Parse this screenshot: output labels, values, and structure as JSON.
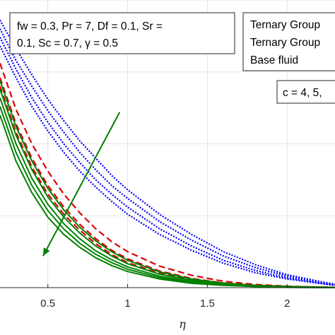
{
  "chart_data": {
    "type": "line",
    "xlabel": "η",
    "ylabel": "",
    "title": "",
    "xlim": [
      0.2,
      2.3
    ],
    "ylim": [
      0,
      1
    ],
    "grid": true,
    "xticks": [
      0.5,
      1,
      1.5,
      2
    ],
    "xtick_labels": [
      "0.5",
      "1",
      "1.5",
      "2"
    ],
    "legend": {
      "placement": "top-right",
      "entries": [
        {
          "label": "Ternary Group",
          "color": "#0000ff",
          "style": "dotted"
        },
        {
          "label": "Ternary Group",
          "color": "#dd0000",
          "style": "dashed"
        },
        {
          "label": "Base fluid",
          "color": "#008000",
          "style": "solid"
        }
      ]
    },
    "annotations": {
      "params_line1": "fw = 0.3, Pr = 7, Df = 0.1, Sr =",
      "params_line2": "0.1, Sc = 0.7, γ = 0.5",
      "c_label": "c = 4, 5,"
    },
    "arrow": {
      "from": [
        0.95,
        0.61
      ],
      "to": [
        0.47,
        0.11
      ],
      "color": "#008000"
    },
    "series": [
      {
        "color": "#0000ff",
        "style": "dotted",
        "x": [
          0.2,
          0.3,
          0.4,
          0.5,
          0.6,
          0.7,
          0.8,
          0.9,
          1.0,
          1.2,
          1.4,
          1.6,
          1.8,
          2.0,
          2.2,
          2.3
        ],
        "y": [
          0.93,
          0.83,
          0.74,
          0.655,
          0.58,
          0.51,
          0.45,
          0.39,
          0.34,
          0.255,
          0.185,
          0.125,
          0.08,
          0.045,
          0.022,
          0.012
        ]
      },
      {
        "color": "#0000ff",
        "style": "dotted",
        "x": [
          0.2,
          0.3,
          0.4,
          0.5,
          0.6,
          0.7,
          0.8,
          0.9,
          1.0,
          1.2,
          1.4,
          1.6,
          1.8,
          2.0,
          2.2,
          2.3
        ],
        "y": [
          0.9,
          0.79,
          0.7,
          0.615,
          0.54,
          0.47,
          0.41,
          0.355,
          0.31,
          0.23,
          0.165,
          0.11,
          0.07,
          0.04,
          0.02,
          0.01
        ]
      },
      {
        "color": "#0000ff",
        "style": "dotted",
        "x": [
          0.2,
          0.3,
          0.4,
          0.5,
          0.6,
          0.7,
          0.8,
          0.9,
          1.0,
          1.2,
          1.4,
          1.6,
          1.8,
          2.0,
          2.2,
          2.3
        ],
        "y": [
          0.87,
          0.76,
          0.66,
          0.575,
          0.5,
          0.435,
          0.375,
          0.325,
          0.28,
          0.205,
          0.145,
          0.095,
          0.06,
          0.034,
          0.017,
          0.009
        ]
      },
      {
        "color": "#0000ff",
        "style": "dotted",
        "x": [
          0.2,
          0.3,
          0.4,
          0.5,
          0.6,
          0.7,
          0.8,
          0.9,
          1.0,
          1.2,
          1.4,
          1.6,
          1.8,
          2.0,
          2.2,
          2.3
        ],
        "y": [
          0.84,
          0.73,
          0.63,
          0.545,
          0.47,
          0.405,
          0.35,
          0.3,
          0.255,
          0.185,
          0.13,
          0.085,
          0.052,
          0.03,
          0.015,
          0.008
        ]
      },
      {
        "color": "#dd0000",
        "style": "dashed",
        "x": [
          0.2,
          0.3,
          0.4,
          0.5,
          0.6,
          0.7,
          0.8,
          0.9,
          1.0,
          1.2,
          1.4,
          1.6,
          1.8,
          2.0,
          2.2,
          2.3
        ],
        "y": [
          0.78,
          0.62,
          0.5,
          0.405,
          0.325,
          0.26,
          0.205,
          0.16,
          0.125,
          0.075,
          0.043,
          0.022,
          0.011,
          0.005,
          0.002,
          0.001
        ]
      },
      {
        "color": "#dd0000",
        "style": "dashed",
        "x": [
          0.2,
          0.3,
          0.4,
          0.5,
          0.6,
          0.7,
          0.8,
          0.9,
          1.0,
          1.2,
          1.4,
          1.6,
          1.8,
          2.0,
          2.2,
          2.3
        ],
        "y": [
          0.73,
          0.57,
          0.45,
          0.355,
          0.28,
          0.22,
          0.17,
          0.13,
          0.1,
          0.058,
          0.032,
          0.016,
          0.008,
          0.004,
          0.002,
          0.001
        ]
      },
      {
        "color": "#dd0000",
        "style": "dashed",
        "x": [
          0.2,
          0.3,
          0.4,
          0.5,
          0.6,
          0.7,
          0.8,
          0.9,
          1.0,
          1.2,
          1.4,
          1.6,
          1.8,
          2.0,
          2.2,
          2.3
        ],
        "y": [
          0.7,
          0.54,
          0.42,
          0.325,
          0.255,
          0.2,
          0.153,
          0.115,
          0.087,
          0.05,
          0.027,
          0.014,
          0.007,
          0.003,
          0.001,
          0.0
        ]
      },
      {
        "color": "#008000",
        "style": "solid",
        "x": [
          0.2,
          0.3,
          0.4,
          0.5,
          0.6,
          0.7,
          0.8,
          0.9,
          1.0,
          1.2,
          1.4,
          1.6,
          1.8,
          2.0,
          2.2,
          2.3
        ],
        "y": [
          0.72,
          0.56,
          0.44,
          0.345,
          0.27,
          0.21,
          0.163,
          0.125,
          0.095,
          0.055,
          0.03,
          0.016,
          0.008,
          0.004,
          0.002,
          0.001
        ]
      },
      {
        "color": "#008000",
        "style": "solid",
        "x": [
          0.2,
          0.3,
          0.4,
          0.5,
          0.6,
          0.7,
          0.8,
          0.9,
          1.0,
          1.2,
          1.4,
          1.6,
          1.8,
          2.0,
          2.2,
          2.3
        ],
        "y": [
          0.69,
          0.53,
          0.41,
          0.315,
          0.245,
          0.19,
          0.145,
          0.11,
          0.083,
          0.047,
          0.025,
          0.013,
          0.006,
          0.003,
          0.001,
          0.0
        ]
      },
      {
        "color": "#008000",
        "style": "solid",
        "x": [
          0.2,
          0.3,
          0.4,
          0.5,
          0.6,
          0.7,
          0.8,
          0.9,
          1.0,
          1.2,
          1.4,
          1.6,
          1.8,
          2.0,
          2.2,
          2.3
        ],
        "y": [
          0.66,
          0.5,
          0.38,
          0.29,
          0.222,
          0.17,
          0.128,
          0.097,
          0.072,
          0.04,
          0.021,
          0.011,
          0.005,
          0.002,
          0.001,
          0.0
        ]
      },
      {
        "color": "#008000",
        "style": "solid",
        "x": [
          0.2,
          0.3,
          0.4,
          0.5,
          0.6,
          0.7,
          0.8,
          0.9,
          1.0,
          1.2,
          1.4,
          1.6,
          1.8,
          2.0,
          2.2,
          2.3
        ],
        "y": [
          0.63,
          0.47,
          0.355,
          0.268,
          0.204,
          0.154,
          0.116,
          0.087,
          0.064,
          0.035,
          0.018,
          0.009,
          0.004,
          0.002,
          0.001,
          0.0
        ]
      },
      {
        "color": "#008000",
        "style": "solid",
        "x": [
          0.2,
          0.3,
          0.4,
          0.5,
          0.6,
          0.7,
          0.8,
          0.9,
          1.0,
          1.2,
          1.4,
          1.6,
          1.8,
          2.0,
          2.2,
          2.3
        ],
        "y": [
          0.6,
          0.44,
          0.33,
          0.245,
          0.185,
          0.14,
          0.104,
          0.077,
          0.056,
          0.03,
          0.015,
          0.008,
          0.004,
          0.001,
          0.0,
          0.0
        ]
      }
    ]
  }
}
